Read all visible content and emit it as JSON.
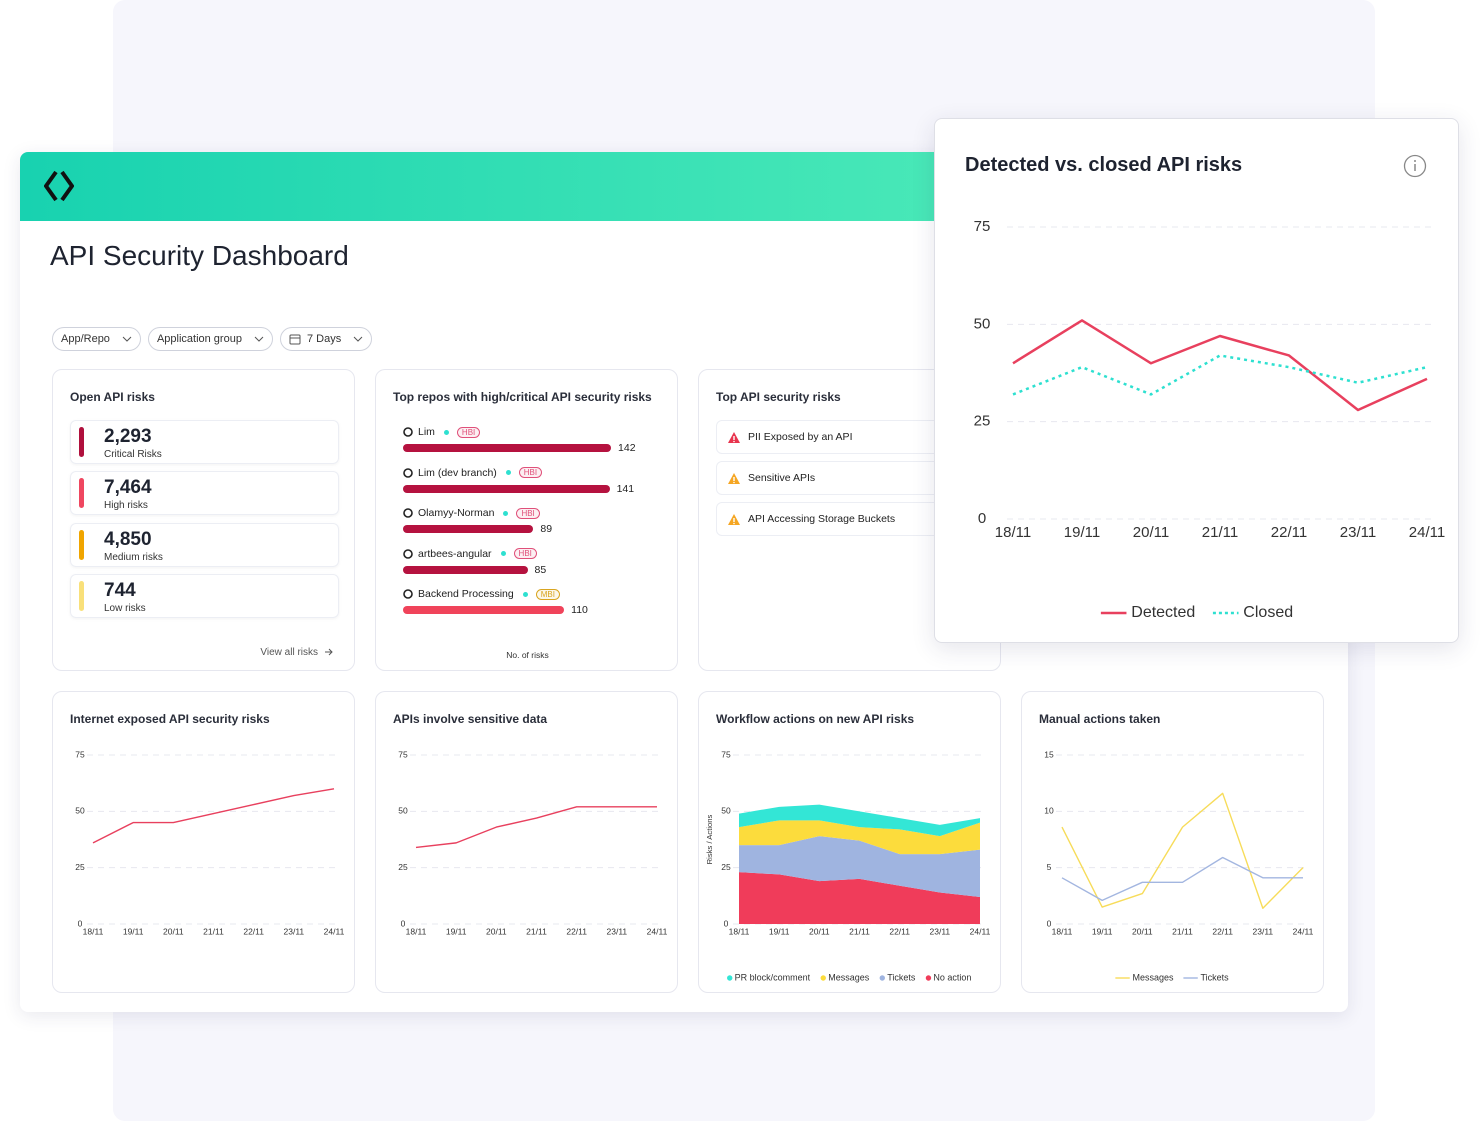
{
  "title": "API Security Dashboard",
  "filters": [
    "App/Repo",
    "Application group",
    "7 Days"
  ],
  "open_risks": {
    "title": "Open API risks",
    "link": "View all risks",
    "items": [
      {
        "value": "2,293",
        "label": "Critical Risks",
        "color": "#b0103d"
      },
      {
        "value": "7,464",
        "label": "High risks",
        "color": "#ef4760"
      },
      {
        "value": "4,850",
        "label": "Medium risks",
        "color": "#f0a500"
      },
      {
        "value": "744",
        "label": "Low risks",
        "color": "#f9e07a"
      }
    ]
  },
  "top_repos": {
    "title": "Top repos with high/critical API security risks",
    "x_label": "No. of risks",
    "repos": [
      {
        "name": "Lim",
        "tag": "HBI",
        "tag_color": "#e0507a",
        "value": 142,
        "color": "#b5123f"
      },
      {
        "name": "Lim (dev branch)",
        "tag": "HBI",
        "tag_color": "#e0507a",
        "value": 141,
        "color": "#b5123f"
      },
      {
        "name": "Olamyy-Norman",
        "tag": "HBI",
        "tag_color": "#e0507a",
        "value": 89,
        "color": "#b5123f"
      },
      {
        "name": "artbees-angular",
        "tag": "HBI",
        "tag_color": "#e0507a",
        "value": 85,
        "color": "#b5123f"
      },
      {
        "name": "Backend Processing",
        "tag": "MBI",
        "tag_color": "#d9a520",
        "value": 110,
        "color": "#f0435a"
      }
    ]
  },
  "top_risks": {
    "title": "Top API security risks",
    "items": [
      {
        "label": "PII Exposed by an API",
        "icon_color": "#e8344e"
      },
      {
        "label": "Sensitive APIs",
        "icon_color": "#f5a623"
      },
      {
        "label": "API Accessing Storage Buckets",
        "icon_color": "#f5a623"
      }
    ]
  },
  "charts": [
    {
      "type": "line",
      "title": "Detected vs. closed API risks",
      "categories": [
        "18/11",
        "19/11",
        "20/11",
        "21/11",
        "22/11",
        "23/11",
        "24/11"
      ],
      "ylim": [
        0,
        75
      ],
      "yticks": [
        0,
        25,
        50,
        75
      ],
      "grid": true,
      "series": [
        {
          "name": "Detected",
          "color": "#e8405e",
          "values": [
            40,
            51,
            40,
            47,
            42,
            28,
            36
          ]
        },
        {
          "name": "Closed",
          "color": "#2ee0d0",
          "dash": true,
          "values": [
            32,
            39,
            32,
            42,
            39,
            35,
            39
          ]
        }
      ]
    },
    {
      "type": "line",
      "title": "Internet exposed API security risks",
      "categories": [
        "18/11",
        "19/11",
        "20/11",
        "21/11",
        "22/11",
        "23/11",
        "24/11"
      ],
      "ylim": [
        0,
        75
      ],
      "yticks": [
        0,
        25,
        50,
        75
      ],
      "grid": true,
      "series": [
        {
          "color": "#e8405e",
          "values": [
            36,
            45,
            45,
            49,
            53,
            57,
            60
          ]
        }
      ]
    },
    {
      "type": "line",
      "title": "APIs involve sensitive data",
      "categories": [
        "18/11",
        "19/11",
        "20/11",
        "21/11",
        "22/11",
        "23/11",
        "24/11"
      ],
      "ylim": [
        0,
        75
      ],
      "yticks": [
        0,
        25,
        50,
        75
      ],
      "grid": true,
      "series": [
        {
          "color": "#e8405e",
          "values": [
            34,
            36,
            43,
            47,
            52,
            52,
            52
          ]
        }
      ]
    },
    {
      "type": "area",
      "title": "Workflow actions on new API risks",
      "y_label": "Risks / Actions",
      "categories": [
        "18/11",
        "19/11",
        "20/11",
        "21/11",
        "22/11",
        "23/11",
        "24/11"
      ],
      "ylim": [
        0,
        75
      ],
      "yticks": [
        0,
        25,
        50,
        75
      ],
      "grid": true,
      "series": [
        {
          "name": "PR block/comment",
          "color": "#33e6d6",
          "values": [
            6,
            6,
            7,
            7,
            5,
            5,
            2
          ]
        },
        {
          "name": "Messages",
          "color": "#fcdc3c",
          "values": [
            8,
            11,
            7,
            6,
            11,
            8,
            12
          ]
        },
        {
          "name": "Tickets",
          "color": "#9fb4e0",
          "values": [
            12,
            13,
            20,
            17,
            14,
            17,
            21
          ]
        },
        {
          "name": "No action",
          "color": "#f03c5a",
          "values": [
            23,
            22,
            19,
            20,
            17,
            14,
            12
          ]
        }
      ]
    },
    {
      "type": "line",
      "title": "Manual actions taken",
      "categories": [
        "18/11",
        "19/11",
        "20/11",
        "21/11",
        "22/11",
        "23/11",
        "24/11"
      ],
      "ylim": [
        0,
        15
      ],
      "yticks": [
        0,
        5,
        10,
        15
      ],
      "grid": true,
      "series": [
        {
          "name": "Messages",
          "color": "#f7dc5a",
          "values": [
            8.6,
            1.5,
            2.7,
            8.6,
            11.6,
            1.4,
            5
          ]
        },
        {
          "name": "Tickets",
          "color": "#a3b6e0",
          "values": [
            4.1,
            2.1,
            3.7,
            3.7,
            5.9,
            4.1,
            4.1
          ]
        }
      ]
    }
  ]
}
